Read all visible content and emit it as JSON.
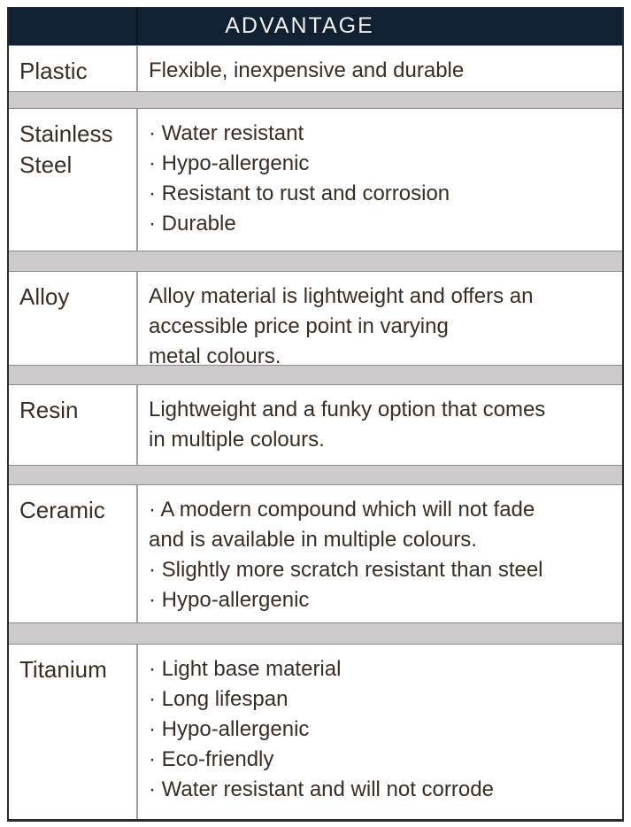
{
  "table": {
    "header": "ADVANTAGE",
    "rows": [
      {
        "material": "Plastic",
        "lines": [
          "Flexible, inexpensive and durable"
        ]
      },
      {
        "material": "Stainless Steel",
        "lines": [
          "· Water resistant",
          "· Hypo-allergenic",
          "· Resistant to rust and corrosion",
          "· Durable"
        ]
      },
      {
        "material": "Alloy",
        "lines": [
          "Alloy material is lightweight and offers an",
          "accessible price point in varying",
          "metal colours."
        ]
      },
      {
        "material": "Resin",
        "lines": [
          "Lightweight and a funky option that comes",
          "in multiple colours."
        ]
      },
      {
        "material": "Ceramic",
        "lines": [
          "· A modern compound which will not fade",
          "and is available in multiple colours.",
          "· Slightly more scratch resistant than steel",
          "· Hypo-allergenic"
        ]
      },
      {
        "material": "Titanium",
        "lines": [
          "· Light base material",
          "· Long lifespan",
          "· Hypo-allergenic",
          "· Eco-friendly",
          "· Water resistant and will not corrode"
        ]
      }
    ]
  },
  "colors": {
    "header_bg": "#0f2132",
    "header_text": "#f2f1ef",
    "body_text": "#3a2d24",
    "separator_fill": "#cccaca",
    "separator_border": "#8f8b8c",
    "divider": "#a39e9d",
    "outer_border": "#2f2b27"
  }
}
